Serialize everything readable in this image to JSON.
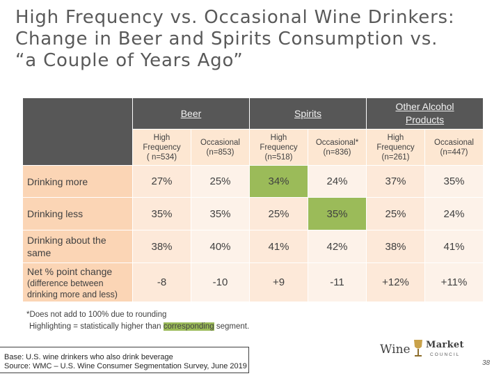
{
  "title": {
    "line1": "High Frequency vs. Occasional Wine Drinkers:",
    "line2": "Change in Beer and Spirits Consumption vs.",
    "line3": "“a Couple of Years Ago”"
  },
  "table": {
    "groups": [
      "Beer",
      "Spirits",
      "Other Alcohol Products"
    ],
    "subheaders": [
      [
        "High",
        "Frequency",
        "( n=534)"
      ],
      [
        "Occasional",
        "(n=853)"
      ],
      [
        "High",
        "Frequency",
        "(n=518)"
      ],
      [
        "Occasional*",
        "(n=836)"
      ],
      [
        "High",
        "Frequency",
        "(n=261)"
      ],
      [
        "Occasional",
        "(n=447)"
      ]
    ],
    "rows": [
      {
        "label": "Drinking more",
        "values": [
          "27%",
          "25%",
          "34%",
          "24%",
          "37%",
          "35%"
        ]
      },
      {
        "label": "Drinking less",
        "values": [
          "35%",
          "35%",
          "25%",
          "35%",
          "25%",
          "24%"
        ]
      },
      {
        "label": "Drinking about the same",
        "values": [
          "38%",
          "40%",
          "41%",
          "42%",
          "38%",
          "41%"
        ]
      },
      {
        "label": "Net % point change",
        "sublabel": "(difference between drinking more and less)",
        "values": [
          "-8",
          "-10",
          "+9",
          "-11",
          "+12%",
          "+11%"
        ]
      }
    ],
    "highlight_color": "#9bbb59"
  },
  "footnotes": {
    "note1": "*Does not add to 100% due to rounding",
    "note2_pre": "Highlighting = statistically higher than",
    "note2_mark": "corresponding",
    "note2_post": "segment."
  },
  "base": {
    "line1": "Base: U.S. wine drinkers who also drink beverage",
    "line2": "Source: WMC – U.S. Wine Consumer Segmentation Survey, June 2019"
  },
  "logo": {
    "wine": "Wine",
    "market": "Market",
    "council": "COUNCIL"
  },
  "page_number": "38"
}
